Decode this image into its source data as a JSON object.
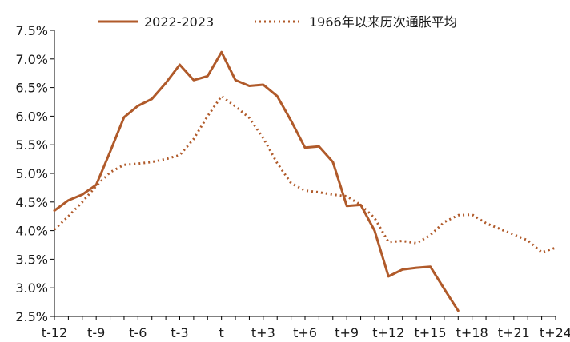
{
  "chart_data": {
    "type": "line",
    "title": "",
    "xlabel": "",
    "ylabel": "",
    "x_tick_labels": [
      "t-12",
      "t-9",
      "t-6",
      "t-3",
      "t",
      "t+3",
      "t+6",
      "t+9",
      "t+12",
      "t+15",
      "t+18",
      "t+21",
      "t+24"
    ],
    "y_tick_labels": [
      "2.5%",
      "3.0%",
      "3.5%",
      "4.0%",
      "4.5%",
      "5.0%",
      "5.5%",
      "6.0%",
      "6.5%",
      "7.0%",
      "7.5%"
    ],
    "xlim": [
      -12,
      24
    ],
    "ylim": [
      2.5,
      7.5
    ],
    "grid": false,
    "legend_position": "top",
    "series": [
      {
        "name": "2022-2023",
        "color": "#b05a2a",
        "style": "solid",
        "x": [
          -12,
          -11,
          -10,
          -9,
          -8,
          -7,
          -6,
          -5,
          -4,
          -3,
          -2,
          -1,
          0,
          1,
          2,
          3,
          4,
          5,
          6,
          7,
          8,
          9,
          10,
          11,
          12,
          13,
          14,
          15,
          16,
          17
        ],
        "values": [
          4.35,
          4.53,
          4.63,
          4.8,
          5.38,
          5.98,
          6.18,
          6.3,
          6.58,
          6.9,
          6.63,
          6.7,
          7.12,
          6.63,
          6.53,
          6.55,
          6.35,
          5.92,
          5.45,
          5.47,
          5.2,
          4.43,
          4.45,
          4.0,
          3.2,
          3.32,
          3.35,
          3.37,
          2.98,
          2.6
        ]
      },
      {
        "name": "1966年以来历次通胀平均",
        "color": "#b05a2a",
        "style": "dotted",
        "x": [
          -12,
          -11,
          -10,
          -9,
          -8,
          -7,
          -6,
          -5,
          -4,
          -3,
          -2,
          -1,
          0,
          1,
          2,
          3,
          4,
          5,
          6,
          7,
          8,
          9,
          10,
          11,
          12,
          13,
          14,
          15,
          16,
          17,
          18,
          19,
          20,
          21,
          22,
          23,
          24
        ],
        "values": [
          4.02,
          4.25,
          4.5,
          4.78,
          5.02,
          5.15,
          5.17,
          5.2,
          5.25,
          5.32,
          5.6,
          6.0,
          6.35,
          6.17,
          5.97,
          5.62,
          5.18,
          4.83,
          4.7,
          4.67,
          4.63,
          4.6,
          4.45,
          4.22,
          3.8,
          3.82,
          3.78,
          3.92,
          4.15,
          4.27,
          4.28,
          4.13,
          4.03,
          3.93,
          3.83,
          3.62,
          3.7
        ]
      }
    ]
  }
}
